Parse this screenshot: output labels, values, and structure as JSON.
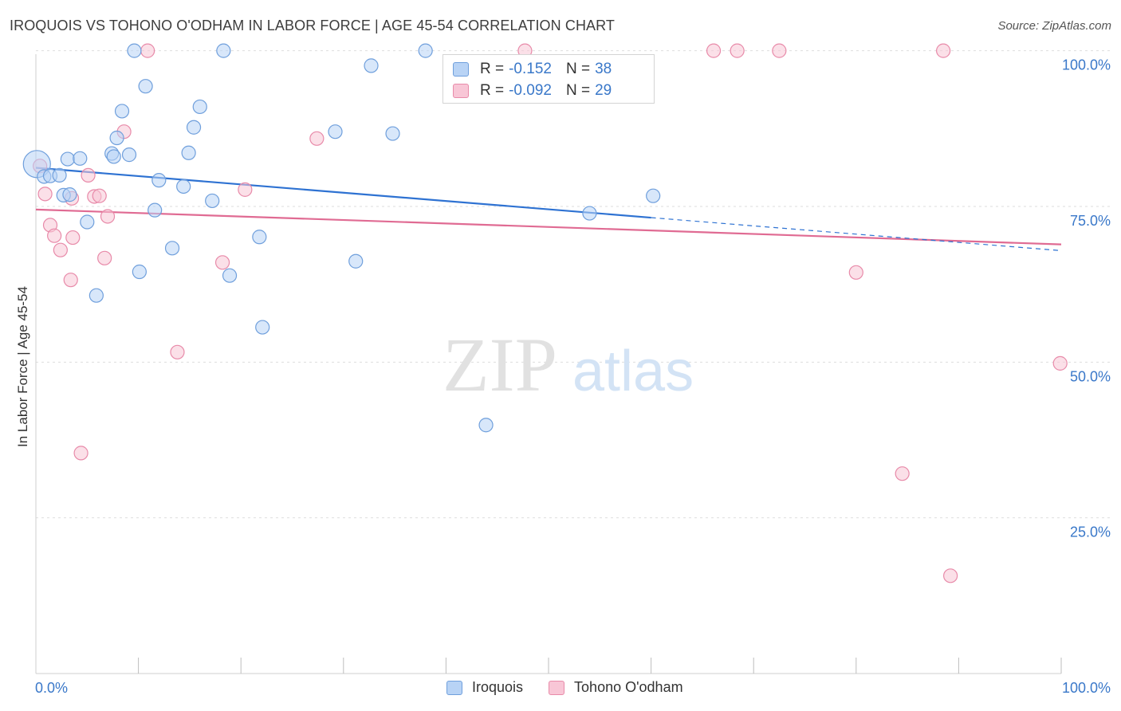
{
  "header": {
    "title": "IROQUOIS VS TOHONO O'ODHAM IN LABOR FORCE | AGE 45-54 CORRELATION CHART",
    "source": "Source: ZipAtlas.com"
  },
  "watermark": {
    "zip": "ZIP",
    "atlas": "atlas"
  },
  "legend": {
    "r_label": "R =",
    "n_label": "N =",
    "iroquois": {
      "r": "-0.152",
      "n": "38"
    },
    "tohono": {
      "r": "-0.092",
      "n": "29"
    }
  },
  "colors": {
    "iroquois_fill": "#b8d3f5",
    "iroquois_stroke": "#6f9fdc",
    "iroquois_line": "#2e72d2",
    "tohono_fill": "#f8c6d6",
    "tohono_stroke": "#e88aa9",
    "tohono_line": "#e06b93",
    "axis_label": "#3a78c9"
  },
  "chart_data": {
    "type": "scatter",
    "title": "IROQUOIS VS TOHONO O'ODHAM IN LABOR FORCE | AGE 45-54 CORRELATION CHART",
    "xlabel": "",
    "ylabel": "In Labor Force | Age 45-54",
    "xlim": [
      0,
      100
    ],
    "ylim": [
      0,
      102
    ],
    "x_tick_labels": [
      "0.0%",
      "100.0%"
    ],
    "y_ticks": [
      25,
      50,
      75,
      100
    ],
    "y_tick_labels": [
      "25.0%",
      "50.0%",
      "75.0%",
      "100.0%"
    ],
    "grid": true,
    "legend_position": "top-center",
    "series": [
      {
        "name": "Iroquois",
        "r": -0.152,
        "n": 38,
        "trend": {
          "x0": 0,
          "y0": 81.2,
          "x1": 60,
          "y1": 73.2,
          "dash_x1": 100,
          "dash_y1": 67.9
        },
        "points": [
          {
            "x": 0.1,
            "y": 81.8,
            "big": true
          },
          {
            "x": 0.8,
            "y": 79.8
          },
          {
            "x": 1.4,
            "y": 79.9
          },
          {
            "x": 2.3,
            "y": 80.0
          },
          {
            "x": 2.7,
            "y": 76.8
          },
          {
            "x": 3.3,
            "y": 76.9
          },
          {
            "x": 3.1,
            "y": 82.6
          },
          {
            "x": 4.3,
            "y": 82.7
          },
          {
            "x": 5.0,
            "y": 72.5
          },
          {
            "x": 5.9,
            "y": 60.7
          },
          {
            "x": 7.4,
            "y": 83.5
          },
          {
            "x": 7.6,
            "y": 83.0
          },
          {
            "x": 7.9,
            "y": 86.0
          },
          {
            "x": 8.4,
            "y": 90.3
          },
          {
            "x": 9.1,
            "y": 83.3
          },
          {
            "x": 9.6,
            "y": 100.0
          },
          {
            "x": 10.1,
            "y": 64.5
          },
          {
            "x": 10.7,
            "y": 94.3
          },
          {
            "x": 11.6,
            "y": 74.4
          },
          {
            "x": 12.0,
            "y": 79.2
          },
          {
            "x": 13.3,
            "y": 68.3
          },
          {
            "x": 14.4,
            "y": 78.2
          },
          {
            "x": 14.9,
            "y": 83.6
          },
          {
            "x": 15.4,
            "y": 87.7
          },
          {
            "x": 16.0,
            "y": 91.0
          },
          {
            "x": 17.2,
            "y": 75.9
          },
          {
            "x": 18.9,
            "y": 63.9
          },
          {
            "x": 18.3,
            "y": 100.0
          },
          {
            "x": 21.8,
            "y": 70.1
          },
          {
            "x": 22.1,
            "y": 55.6
          },
          {
            "x": 29.2,
            "y": 87.0
          },
          {
            "x": 31.2,
            "y": 66.2
          },
          {
            "x": 32.7,
            "y": 97.6
          },
          {
            "x": 34.8,
            "y": 86.7
          },
          {
            "x": 38.0,
            "y": 100.0
          },
          {
            "x": 43.9,
            "y": 39.9
          },
          {
            "x": 54.0,
            "y": 73.9
          },
          {
            "x": 60.2,
            "y": 76.7
          }
        ]
      },
      {
        "name": "Tohono O'odham",
        "r": -0.092,
        "n": 29,
        "trend": {
          "x0": 0,
          "y0": 74.5,
          "x1": 100,
          "y1": 68.9
        },
        "points": [
          {
            "x": 0.4,
            "y": 81.5
          },
          {
            "x": 0.9,
            "y": 77.0
          },
          {
            "x": 1.4,
            "y": 72.0
          },
          {
            "x": 1.8,
            "y": 70.3
          },
          {
            "x": 2.4,
            "y": 68.0
          },
          {
            "x": 3.5,
            "y": 76.3
          },
          {
            "x": 3.4,
            "y": 63.2
          },
          {
            "x": 3.6,
            "y": 70.0
          },
          {
            "x": 4.4,
            "y": 35.4
          },
          {
            "x": 5.1,
            "y": 80.0
          },
          {
            "x": 5.7,
            "y": 76.6
          },
          {
            "x": 6.2,
            "y": 76.7
          },
          {
            "x": 6.7,
            "y": 66.7
          },
          {
            "x": 7.0,
            "y": 73.4
          },
          {
            "x": 8.6,
            "y": 87.0
          },
          {
            "x": 10.9,
            "y": 100.0
          },
          {
            "x": 13.8,
            "y": 51.6
          },
          {
            "x": 18.2,
            "y": 66.0
          },
          {
            "x": 20.4,
            "y": 77.7
          },
          {
            "x": 27.4,
            "y": 85.9
          },
          {
            "x": 47.7,
            "y": 100.0
          },
          {
            "x": 66.1,
            "y": 100.0
          },
          {
            "x": 68.4,
            "y": 100.0
          },
          {
            "x": 72.5,
            "y": 100.0
          },
          {
            "x": 80.0,
            "y": 64.4
          },
          {
            "x": 84.5,
            "y": 32.1
          },
          {
            "x": 88.5,
            "y": 100.0
          },
          {
            "x": 89.2,
            "y": 15.7
          },
          {
            "x": 99.9,
            "y": 49.8
          }
        ]
      }
    ]
  }
}
